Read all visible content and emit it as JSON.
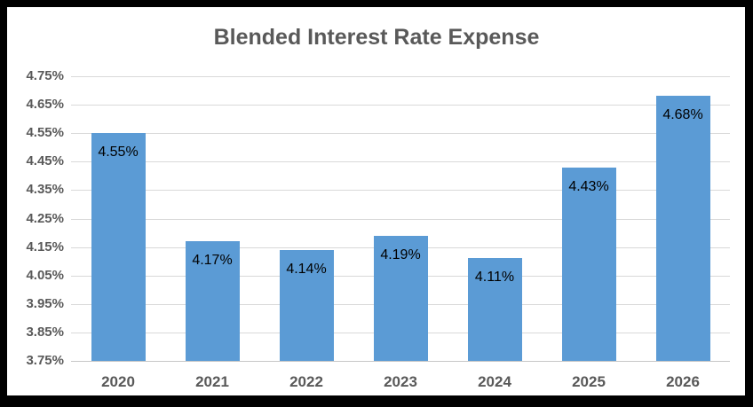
{
  "chart_data": {
    "type": "bar",
    "title": "Blended Interest Rate Expense",
    "categories": [
      "2020",
      "2021",
      "2022",
      "2023",
      "2024",
      "2025",
      "2026"
    ],
    "values": [
      4.55,
      4.17,
      4.14,
      4.19,
      4.11,
      4.43,
      4.68
    ],
    "data_labels": [
      "4.55%",
      "4.17%",
      "4.14%",
      "4.19%",
      "4.11%",
      "4.43%",
      "4.68%"
    ],
    "y_ticks": [
      "4.75%",
      "4.65%",
      "4.55%",
      "4.45%",
      "4.35%",
      "4.25%",
      "4.15%",
      "4.05%",
      "3.95%",
      "3.85%",
      "3.75%"
    ],
    "ylim": [
      3.75,
      4.75
    ],
    "y_tick_step": 0.1,
    "xlabel": "",
    "ylabel": "",
    "grid": true,
    "legend": "none",
    "colors": {
      "bar": "#5B9BD5",
      "title": "#595959",
      "axis_labels": "#595959",
      "gridline": "#D9D9D9",
      "baseline": "#C6C6C6",
      "data_label": "#000000",
      "frame": "#000000"
    }
  }
}
